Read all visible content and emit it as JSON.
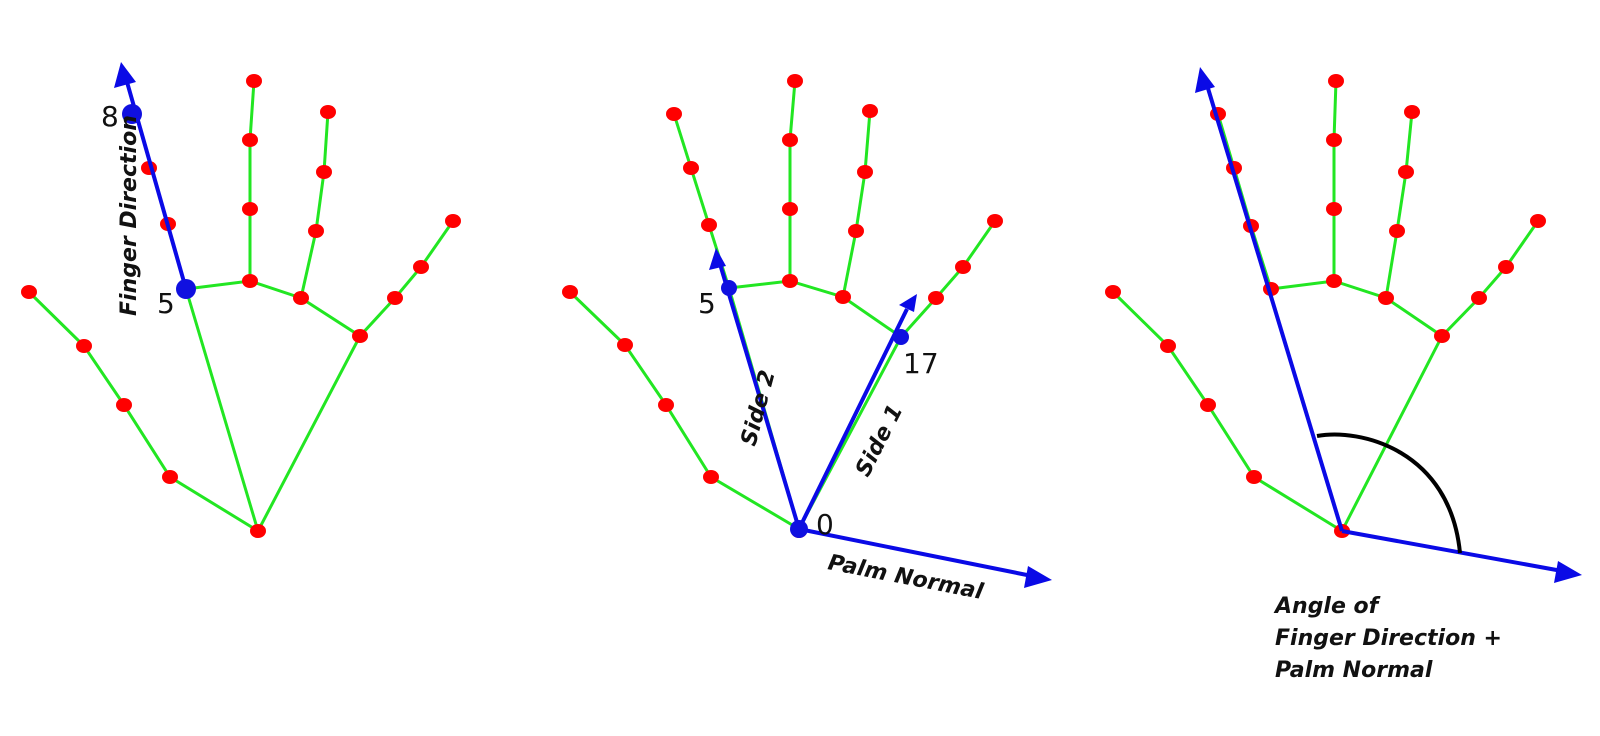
{
  "panel1": {
    "point_tip": "8",
    "point_base": "5",
    "vector_label": "Finger Direction"
  },
  "panel2": {
    "point_side2": "5",
    "point_side1": "17",
    "point_origin": "0",
    "label_side1": "Side 1",
    "label_side2": "Side 2",
    "label_normal": "Palm Normal"
  },
  "panel3": {
    "caption_lines": [
      "Angle of",
      "Finger Direction +",
      "Palm Normal"
    ]
  },
  "colors": {
    "bone": "#22e622",
    "joint": "#ff0000",
    "key_point": "#1010e0",
    "vector": "#0a0ae6",
    "angle_arc": "#000000"
  }
}
